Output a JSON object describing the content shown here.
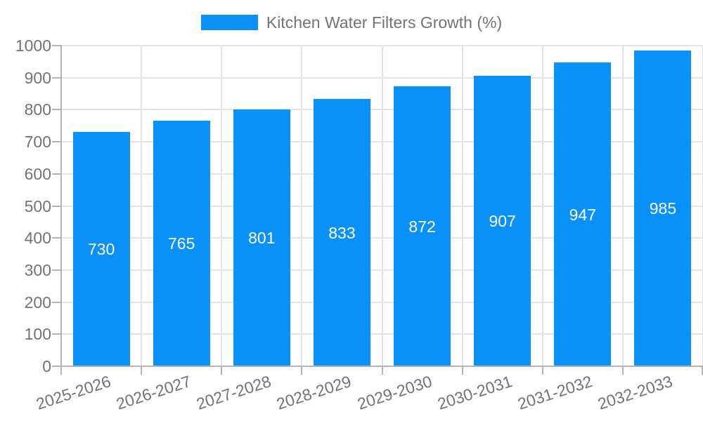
{
  "legend": {
    "label": "Kitchen Water Filters Growth (%)"
  },
  "colors": {
    "bar": "#0991f8",
    "axis_line": "#b3b3b3",
    "gridline": "#e3e3e3",
    "tick_label": "#737373",
    "bar_label": "#ffffff",
    "background": "#ffffff"
  },
  "chart_data": {
    "type": "bar",
    "title": "Kitchen Water Filters Growth (%)",
    "categories": [
      "2025-2026",
      "2026-2027",
      "2027-2028",
      "2028-2029",
      "2029-2030",
      "2030-2031",
      "2031-2032",
      "2032-2033"
    ],
    "values": [
      730,
      765,
      801,
      833,
      872,
      907,
      947,
      985
    ],
    "xlabel": "",
    "ylabel": "",
    "ylim": [
      0,
      1000
    ],
    "yticks": [
      0,
      100,
      200,
      300,
      400,
      500,
      600,
      700,
      800,
      900,
      1000
    ],
    "grid": true,
    "legend_position": "top-center",
    "bar_value_labels": "inside-middle",
    "x_tick_rotation_deg": -18
  }
}
